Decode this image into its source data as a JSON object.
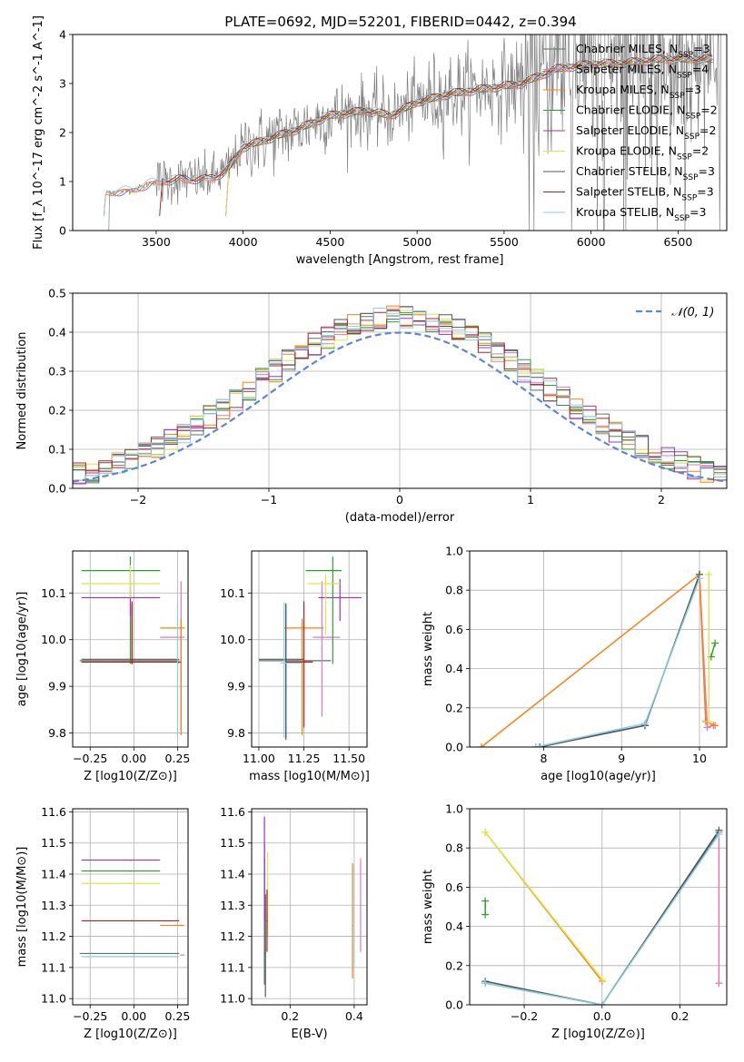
{
  "figure_title": "PLATE=0692, MJD=52201, FIBERID=0442, z=0.394",
  "colors": {
    "grid": "#b0b0b0",
    "models": [
      "#4d7a6b",
      "#e077c1",
      "#ff7f0e",
      "#2ca02c",
      "#9b30d0",
      "#dbe64a",
      "#555555",
      "#b22222",
      "#87ceeb"
    ],
    "data": "#808080",
    "gaussian": "#5b86d6"
  },
  "chart_data": [
    {
      "id": "spectrum",
      "type": "line",
      "xlabel": "wavelength [Angstrom, rest frame]",
      "ylabel": "Flux [f_λ 10^-17 erg cm^-2 s^-1 A^-1]",
      "xlim": [
        3020,
        6780
      ],
      "ylim": [
        0,
        4
      ],
      "xticks": [
        "3500",
        "4000",
        "4500",
        "5000",
        "5500",
        "6000",
        "6500"
      ],
      "yticks": [
        "0",
        "1",
        "2",
        "3",
        "4"
      ],
      "grid": false,
      "legend_position": "top-right",
      "legend": [
        {
          "name": "Chabrier MILES, N",
          "sub": "SSP",
          "tail": "=3"
        },
        {
          "name": "Salpeter MILES, N",
          "sub": "SSP",
          "tail": "=4"
        },
        {
          "name": "Kroupa MILES, N",
          "sub": "SSP",
          "tail": "=3"
        },
        {
          "name": "Chabrier ELODIE, N",
          "sub": "SSP",
          "tail": "=2"
        },
        {
          "name": "Salpeter ELODIE, N",
          "sub": "SSP",
          "tail": "=2"
        },
        {
          "name": "Kroupa ELODIE, N",
          "sub": "SSP",
          "tail": "=2"
        },
        {
          "name": "Chabrier STELIB, N",
          "sub": "SSP",
          "tail": "=3"
        },
        {
          "name": "Salpeter STELIB, N",
          "sub": "SSP",
          "tail": "=3"
        },
        {
          "name": "Kroupa STELIB, N",
          "sub": "SSP",
          "tail": "=3"
        }
      ],
      "continuum_knots": {
        "x": [
          3200,
          3350,
          3500,
          3650,
          3800,
          3900,
          4000,
          4100,
          4300,
          4500,
          4700,
          4850,
          5000,
          5200,
          5400,
          5600,
          5800,
          6000,
          6200,
          6400,
          6600
        ],
        "y": [
          0.78,
          0.82,
          1.0,
          1.05,
          1.05,
          1.2,
          1.7,
          1.82,
          2.05,
          2.35,
          2.45,
          2.35,
          2.62,
          2.8,
          2.9,
          3.0,
          3.3,
          3.4,
          3.42,
          3.5,
          3.5
        ]
      }
    },
    {
      "id": "residuals",
      "type": "histogram",
      "xlabel": "(data-model)/error",
      "ylabel": "Normed distribution",
      "xlim": [
        -2.5,
        2.5
      ],
      "ylim": [
        0,
        0.5
      ],
      "xticks": [
        "−2",
        "−1",
        "0",
        "1",
        "2"
      ],
      "yticks": [
        "0.0",
        "0.1",
        "0.2",
        "0.3",
        "0.4",
        "0.5"
      ],
      "grid": true,
      "legend_position": "top-right",
      "legend": [
        {
          "name": "𝒩(0, 1)"
        }
      ],
      "bin_width": 0.1
    },
    {
      "id": "age_vs_Z",
      "type": "errorbar",
      "xlabel": "Z [log10(Z/Z⊙)]",
      "ylabel": "age [log10(age/yr)]",
      "xlim": [
        -0.35,
        0.31
      ],
      "ylim": [
        9.77,
        10.19
      ],
      "xticks": [
        "−0.25",
        "0.00",
        "0.25"
      ],
      "yticks": [
        "9.8",
        "9.9",
        "10.0",
        "10.1"
      ],
      "grid": true,
      "points": [
        {
          "x": -0.01,
          "xerr": [
            0.3,
            0.27
          ],
          "y": 9.955,
          "yerr": [
            0.005,
            0.12
          ],
          "color": 0
        },
        {
          "x": 0.27,
          "xerr": [
            0.12,
            0.02
          ],
          "y": 10.005,
          "yerr": [
            0.2,
            0.12
          ],
          "color": 1
        },
        {
          "x": 0.27,
          "xerr": [
            0.12,
            0.02
          ],
          "y": 10.025,
          "yerr": [
            0.23,
            0.02
          ],
          "color": 2
        },
        {
          "x": -0.02,
          "xerr": [
            0.28,
            0.17
          ],
          "y": 10.148,
          "yerr": [
            0.2,
            0.03
          ],
          "color": 3
        },
        {
          "x": -0.02,
          "xerr": [
            0.28,
            0.17
          ],
          "y": 10.09,
          "yerr": [
            0.04,
            0.03
          ],
          "color": 4
        },
        {
          "x": -0.02,
          "xerr": [
            0.28,
            0.17
          ],
          "y": 10.12,
          "yerr": [
            0.03,
            0.04
          ],
          "color": 5
        },
        {
          "x": -0.01,
          "xerr": [
            0.29,
            0.27
          ],
          "y": 9.958,
          "yerr": [
            0.008,
            0.12
          ],
          "color": 6
        },
        {
          "x": -0.01,
          "xerr": [
            0.29,
            0.28
          ],
          "y": 9.952,
          "yerr": [
            0.005,
            0.13
          ],
          "color": 7
        },
        {
          "x": 0.25,
          "xerr": [
            0.0,
            0.02
          ],
          "y": 9.95,
          "yerr": [
            0.16,
            0.13
          ],
          "color": 8
        }
      ]
    },
    {
      "id": "age_vs_mass",
      "type": "errorbar",
      "xlabel": "mass [log10(M/M⊙)]",
      "ylabel": "",
      "xlim": [
        10.96,
        11.6
      ],
      "ylim": [
        9.77,
        10.19
      ],
      "xticks": [
        "11.00",
        "11.25",
        "11.50"
      ],
      "yticks": [
        "9.8",
        "9.9",
        "10.0",
        "10.1"
      ],
      "grid": true,
      "points": [
        {
          "x": 11.15,
          "xerr": [
            0.15,
            0.25
          ],
          "y": 9.955,
          "yerr": [
            0.17,
            0.12
          ],
          "color": 0
        },
        {
          "x": 11.35,
          "xerr": [
            0.05,
            0.1
          ],
          "y": 10.005,
          "yerr": [
            0.17,
            0.12
          ],
          "color": 1
        },
        {
          "x": 11.24,
          "xerr": [
            0.1,
            0.12
          ],
          "y": 10.025,
          "yerr": [
            0.23,
            0.02
          ],
          "color": 2
        },
        {
          "x": 11.41,
          "xerr": [
            0.15,
            0.05
          ],
          "y": 10.148,
          "yerr": [
            0.2,
            0.03
          ],
          "color": 3
        },
        {
          "x": 11.45,
          "xerr": [
            0.12,
            0.12
          ],
          "y": 10.09,
          "yerr": [
            0.05,
            0.04
          ],
          "color": 4
        },
        {
          "x": 11.37,
          "xerr": [
            0.1,
            0.08
          ],
          "y": 10.12,
          "yerr": [
            0.11,
            0.02
          ],
          "color": 5
        },
        {
          "x": 11.15,
          "xerr": [
            0.15,
            0.1
          ],
          "y": 9.958,
          "yerr": [
            0.17,
            0.12
          ],
          "color": 6
        },
        {
          "x": 11.25,
          "xerr": [
            0.1,
            0.05
          ],
          "y": 9.952,
          "yerr": [
            0.14,
            0.13
          ],
          "color": 7
        },
        {
          "x": 11.14,
          "xerr": [
            0.02,
            0.1
          ],
          "y": 9.95,
          "yerr": [
            0.16,
            0.13
          ],
          "color": 8
        }
      ]
    },
    {
      "id": "massweight_vs_age",
      "type": "line",
      "xlabel": "age [log10(age/yr)]",
      "ylabel": "mass weight",
      "xlim": [
        7.05,
        10.35
      ],
      "ylim": [
        0,
        1
      ],
      "xticks": [
        "8",
        "9",
        "10"
      ],
      "yticks": [
        "0.0",
        "0.2",
        "0.4",
        "0.6",
        "0.8",
        "1.0"
      ],
      "grid": true,
      "series": [
        {
          "color": 0,
          "x": [
            7.9,
            9.3,
            10.0
          ],
          "y": [
            0.0,
            0.11,
            0.88
          ]
        },
        {
          "color": 1,
          "x": [
            10.0,
            10.1,
            10.18
          ],
          "y": [
            0.88,
            0.1,
            0.11
          ]
        },
        {
          "color": 2,
          "x": [
            7.2,
            10.0,
            10.08,
            10.2
          ],
          "y": [
            0.0,
            0.88,
            0.13,
            0.11
          ]
        },
        {
          "color": 3,
          "x": [
            10.15,
            10.2
          ],
          "y": [
            0.46,
            0.53
          ]
        },
        {
          "color": 5,
          "x": [
            10.12,
            10.12
          ],
          "y": [
            0.88,
            0.13
          ]
        },
        {
          "color": 6,
          "x": [
            7.95,
            9.3,
            10.0
          ],
          "y": [
            0.0,
            0.11,
            0.88
          ]
        },
        {
          "color": 8,
          "x": [
            7.9,
            9.3,
            10.0
          ],
          "y": [
            0.0,
            0.12,
            0.86
          ]
        }
      ]
    },
    {
      "id": "mass_vs_Z",
      "type": "errorbar",
      "xlabel": "Z [log10(Z/Z⊙)]",
      "ylabel": "mass [log10(M/M⊙)]",
      "xlim": [
        -0.35,
        0.31
      ],
      "ylim": [
        10.98,
        11.61
      ],
      "xticks": [
        "−0.25",
        "0.00",
        "0.25"
      ],
      "yticks": [
        "11.0",
        "11.1",
        "11.2",
        "11.3",
        "11.4",
        "11.5",
        "11.6"
      ],
      "grid": true,
      "points": [
        {
          "x": -0.01,
          "xerr": [
            0.3,
            0.27
          ],
          "y": 11.145,
          "yerr": [
            0.0,
            0.0
          ],
          "color": 0
        },
        {
          "x": 0.27,
          "xerr": [
            0.0,
            0.02
          ],
          "y": 11.14,
          "yerr": [
            0.0,
            0.0
          ],
          "color": 1
        },
        {
          "x": 0.27,
          "xerr": [
            0.12,
            0.02
          ],
          "y": 11.235,
          "yerr": [
            0.0,
            0.0
          ],
          "color": 2
        },
        {
          "x": -0.02,
          "xerr": [
            0.28,
            0.17
          ],
          "y": 11.41,
          "yerr": [
            0.0,
            0.0
          ],
          "color": 3
        },
        {
          "x": -0.02,
          "xerr": [
            0.28,
            0.17
          ],
          "y": 11.445,
          "yerr": [
            0.0,
            0.0
          ],
          "color": 4
        },
        {
          "x": -0.02,
          "xerr": [
            0.28,
            0.17
          ],
          "y": 11.37,
          "yerr": [
            0.0,
            0.0
          ],
          "color": 5
        },
        {
          "x": -0.01,
          "xerr": [
            0.29,
            0.27
          ],
          "y": 11.25,
          "yerr": [
            0.0,
            0.0
          ],
          "color": 7
        },
        {
          "x": -0.01,
          "xerr": [
            0.29,
            0.27
          ],
          "y": 11.135,
          "yerr": [
            0.0,
            0.0
          ],
          "color": 8
        }
      ]
    },
    {
      "id": "mass_vs_ebv",
      "type": "errorbar",
      "xlabel": "E(B-V)",
      "ylabel": "",
      "xlim": [
        0.08,
        0.44
      ],
      "ylim": [
        10.98,
        11.61
      ],
      "xticks": [
        "0.2",
        "0.4"
      ],
      "yticks": [
        "11.0",
        "11.1",
        "11.2",
        "11.3",
        "11.4",
        "11.5",
        "11.6"
      ],
      "grid": true,
      "points": [
        {
          "x": 0.12,
          "y": 11.145,
          "yerr": [
            0.1,
            0.3
          ],
          "color": 0
        },
        {
          "x": 0.42,
          "y": 11.3,
          "yerr": [
            0.15,
            0.15
          ],
          "color": 1
        },
        {
          "x": 0.395,
          "y": 11.235,
          "yerr": [
            0.17,
            0.2
          ],
          "color": 2
        },
        {
          "x": 0.12,
          "y": 11.4,
          "yerr": [
            0.15,
            0.1
          ],
          "color": 3
        },
        {
          "x": 0.12,
          "y": 11.445,
          "yerr": [
            0.2,
            0.14
          ],
          "color": 4
        },
        {
          "x": 0.13,
          "y": 11.37,
          "yerr": [
            0.17,
            0.1
          ],
          "color": 5
        },
        {
          "x": 0.123,
          "y": 11.145,
          "yerr": [
            0.14,
            0.19
          ],
          "color": 6
        },
        {
          "x": 0.128,
          "y": 11.25,
          "yerr": [
            0.1,
            0.1
          ],
          "color": 7
        },
        {
          "x": 0.4,
          "y": 11.3,
          "yerr": [
            0.2,
            0.13
          ],
          "color": 8
        }
      ]
    },
    {
      "id": "massweight_vs_Z",
      "type": "line",
      "xlabel": "Z [log10(Z/Z⊙)]",
      "ylabel": "mass weight",
      "xlim": [
        -0.34,
        0.32
      ],
      "ylim": [
        0,
        1
      ],
      "xticks": [
        "−0.2",
        "0.0",
        "0.2"
      ],
      "yticks": [
        "0.0",
        "0.2",
        "0.4",
        "0.6",
        "0.8",
        "1.0"
      ],
      "grid": true,
      "series": [
        {
          "color": 0,
          "x": [
            -0.3,
            0.0,
            0.3
          ],
          "y": [
            0.11,
            0.0,
            0.88
          ]
        },
        {
          "color": 1,
          "x": [
            0.3,
            0.3
          ],
          "y": [
            0.88,
            0.11
          ]
        },
        {
          "color": 2,
          "x": [
            -0.3,
            0.0
          ],
          "y": [
            0.88,
            0.12
          ]
        },
        {
          "color": 3,
          "x": [
            -0.3,
            -0.3
          ],
          "y": [
            0.46,
            0.53
          ]
        },
        {
          "color": 5,
          "x": [
            -0.3,
            0.0
          ],
          "y": [
            0.88,
            0.13
          ]
        },
        {
          "color": 6,
          "x": [
            -0.3,
            0.0,
            0.3
          ],
          "y": [
            0.12,
            0.0,
            0.89
          ]
        },
        {
          "color": 8,
          "x": [
            -0.3,
            0.0,
            0.3
          ],
          "y": [
            0.11,
            0.0,
            0.87
          ]
        }
      ]
    }
  ]
}
